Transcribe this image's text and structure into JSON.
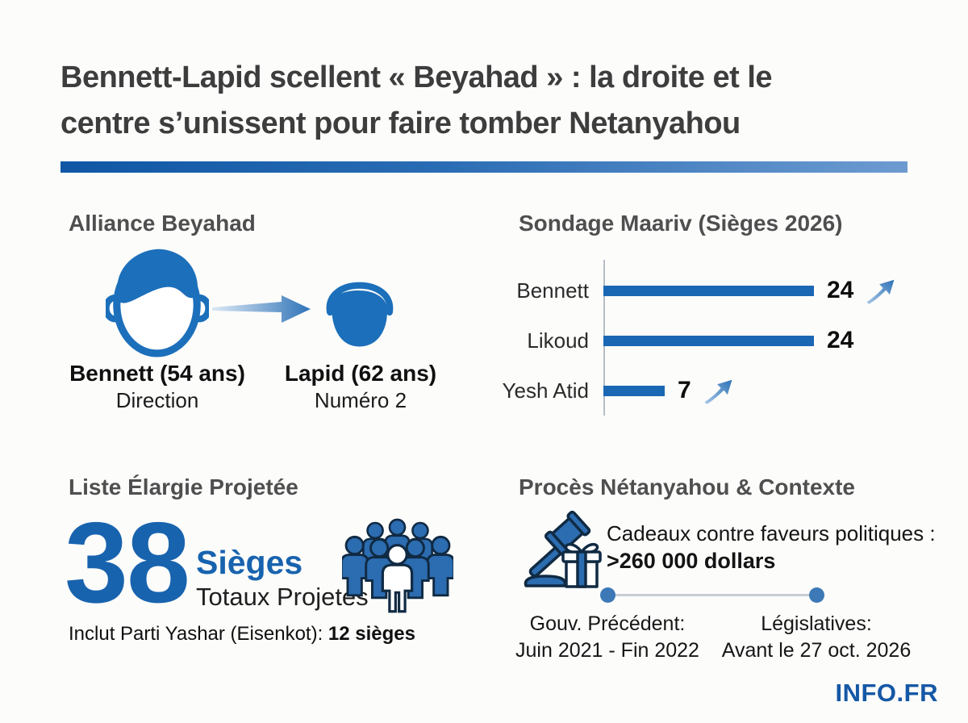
{
  "title_lines": [
    "Bennett-Lapid scellent « Beyahad » : la droite et le",
    "centre s’unissent pour faire tomber Netanyahou"
  ],
  "colors": {
    "accent_blue": "#1a67b4",
    "big_number_blue": "#1863ae",
    "divider_gradient_from": "#0f57a5",
    "divider_gradient_to": "#6d9bd1",
    "icon_blue": "#1c6fba",
    "timeline_dot_blue": "#3c79b6",
    "heading_gray": "#4f4f4f",
    "title_gray": "#3d3d3d"
  },
  "icons": {
    "member1": "man-face-icon",
    "member2": "older-man-face-icon",
    "alliance_arrow": "arrow-right-icon",
    "trend": "trend-up-arrow-icon",
    "crowd": "people-group-icon",
    "trial": "gavel-and-gift-icon"
  },
  "sections": {
    "alliance": {
      "heading": "Alliance Beyahad",
      "members": [
        {
          "name": "Bennett (54 ans)",
          "role": "Direction"
        },
        {
          "name": "Lapid (62 ans)",
          "role": "Numéro 2"
        }
      ]
    },
    "poll": {
      "heading": "Sondage Maariv (Sièges 2026)"
    },
    "list": {
      "heading": "Liste Élargie Projetée",
      "big_number": "38",
      "big_label": "Sièges",
      "big_sublabel": "Totaux Projetés",
      "note_prefix": "Inclut Parti Yashar (Eisenkot): ",
      "note_bold": "12 sièges"
    },
    "trial": {
      "heading": "Procès Nétanyahou & Contexte",
      "line1": "Cadeaux contre faveurs politiques :",
      "line2": ">260 000 dollars",
      "timeline": [
        {
          "label": "Gouv. Précédent:",
          "value": "Juin 2021 - Fin 2022"
        },
        {
          "label": "Législatives:",
          "value": "Avant le 27 oct. 2026"
        }
      ]
    }
  },
  "footer": {
    "brand": "INFO.FR"
  },
  "chart_data": {
    "type": "bar",
    "orientation": "horizontal",
    "title": "Sondage Maariv (Sièges 2026)",
    "categories": [
      "Bennett",
      "Likoud",
      "Yesh Atid"
    ],
    "values": [
      24,
      24,
      7
    ],
    "trend_arrow": [
      true,
      false,
      true
    ],
    "xlim": [
      0,
      24
    ],
    "grid": false,
    "legend": false,
    "bar_color": "#1a67b4"
  }
}
